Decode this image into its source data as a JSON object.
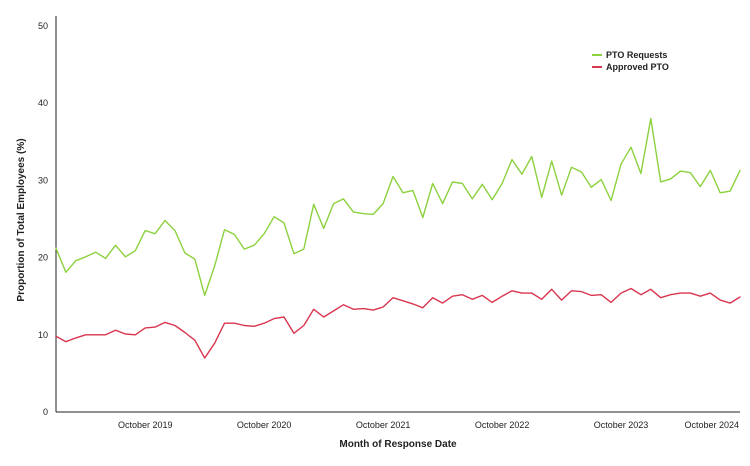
{
  "chart_data": {
    "type": "line",
    "title": "",
    "xlabel": "Month of Response Date",
    "ylabel": "Proportion of Total Employees (%)",
    "ylim": [
      0,
      50
    ],
    "yticks": [
      0,
      10,
      20,
      30,
      40,
      50
    ],
    "grid": false,
    "legend_position": "top-right",
    "x": [
      "Jan 2019",
      "Feb 2019",
      "Mar 2019",
      "Apr 2019",
      "May 2019",
      "Jun 2019",
      "Jul 2019",
      "Aug 2019",
      "Sep 2019",
      "Oct 2019",
      "Nov 2019",
      "Dec 2019",
      "Jan 2020",
      "Feb 2020",
      "Mar 2020",
      "Apr 2020",
      "May 2020",
      "Jun 2020",
      "Jul 2020",
      "Aug 2020",
      "Sep 2020",
      "Oct 2020",
      "Nov 2020",
      "Dec 2020",
      "Jan 2021",
      "Feb 2021",
      "Mar 2021",
      "Apr 2021",
      "May 2021",
      "Jun 2021",
      "Jul 2021",
      "Aug 2021",
      "Sep 2021",
      "Oct 2021",
      "Nov 2021",
      "Dec 2021",
      "Jan 2022",
      "Feb 2022",
      "Mar 2022",
      "Apr 2022",
      "May 2022",
      "Jun 2022",
      "Jul 2022",
      "Aug 2022",
      "Sep 2022",
      "Oct 2022",
      "Nov 2022",
      "Dec 2022",
      "Jan 2023",
      "Feb 2023",
      "Mar 2023",
      "Apr 2023",
      "May 2023",
      "Jun 2023",
      "Jul 2023",
      "Aug 2023",
      "Sep 2023",
      "Oct 2023",
      "Nov 2023",
      "Dec 2023",
      "Jan 2024",
      "Feb 2024",
      "Mar 2024",
      "Apr 2024",
      "May 2024",
      "Jun 2024",
      "Jul 2024",
      "Aug 2024",
      "Sep 2024",
      "Oct 2024"
    ],
    "x_ticks": [
      {
        "index": 9,
        "label": "October 2019"
      },
      {
        "index": 21,
        "label": "October 2020"
      },
      {
        "index": 33,
        "label": "October 2021"
      },
      {
        "index": 45,
        "label": "October 2022"
      },
      {
        "index": 57,
        "label": "October 2023"
      },
      {
        "index": 69,
        "label": "October 2024"
      }
    ],
    "series": [
      {
        "name": "PTO Requests",
        "color": "#8cd13e",
        "values": [
          21.2,
          18.1,
          19.6,
          20.1,
          20.7,
          19.9,
          21.6,
          20.1,
          20.9,
          23.5,
          23.1,
          24.8,
          23.5,
          20.6,
          19.8,
          15.1,
          18.9,
          23.6,
          23.0,
          21.1,
          21.6,
          23.1,
          25.3,
          24.5,
          20.5,
          21.1,
          26.9,
          23.8,
          27.0,
          27.6,
          25.9,
          25.7,
          25.6,
          27.0,
          30.5,
          28.4,
          28.7,
          25.2,
          29.6,
          27.0,
          29.8,
          29.6,
          27.6,
          29.5,
          27.5,
          29.6,
          32.7,
          30.8,
          33.1,
          27.8,
          32.5,
          28.1,
          31.7,
          31.1,
          29.1,
          30.1,
          27.4,
          32.1,
          34.3,
          30.9,
          38.0,
          29.8,
          30.2,
          31.2,
          31.0,
          29.2,
          31.3,
          28.4,
          28.6,
          31.3
        ]
      },
      {
        "name": "Approved PTO",
        "color": "#d9364f",
        "values": [
          9.8,
          9.1,
          9.6,
          10.0,
          10.0,
          10.0,
          10.6,
          10.1,
          10.0,
          10.9,
          11.0,
          11.6,
          11.2,
          10.3,
          9.3,
          7.0,
          8.9,
          11.5,
          11.5,
          11.2,
          11.1,
          11.5,
          12.1,
          12.3,
          10.2,
          11.2,
          13.3,
          12.3,
          13.1,
          13.9,
          13.3,
          13.4,
          13.2,
          13.6,
          14.8,
          14.4,
          14.0,
          13.5,
          14.8,
          14.1,
          15.0,
          15.2,
          14.6,
          15.1,
          14.2,
          15.0,
          15.7,
          15.4,
          15.4,
          14.6,
          15.9,
          14.5,
          15.7,
          15.6,
          15.1,
          15.2,
          14.2,
          15.4,
          16.0,
          15.2,
          15.9,
          14.8,
          15.2,
          15.4,
          15.4,
          15.0,
          15.4,
          14.5,
          14.1,
          14.9
        ]
      }
    ]
  }
}
